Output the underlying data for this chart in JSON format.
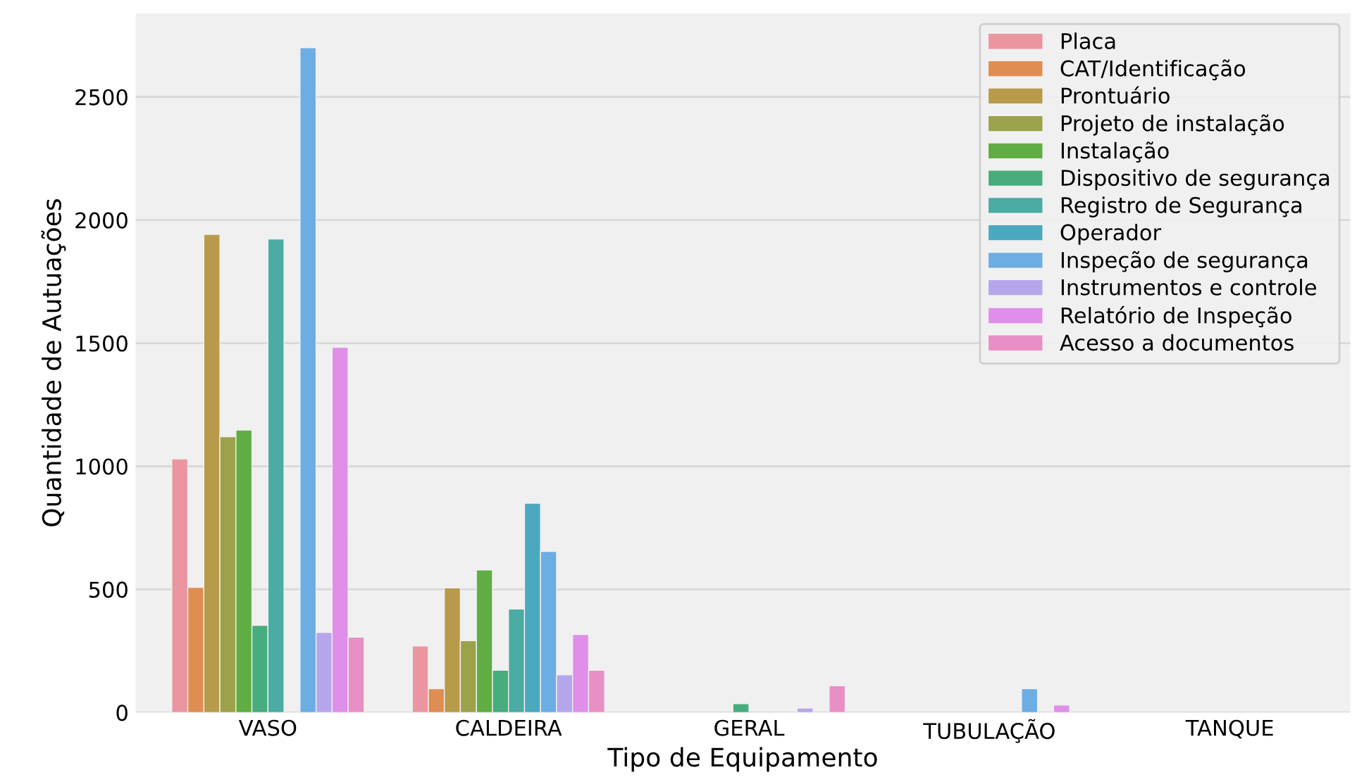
{
  "chart_data": {
    "type": "bar",
    "xlabel": "Tipo de Equipamento",
    "ylabel": "Quantidade de Autuações",
    "categories": [
      "VASO",
      "CALDEIRA",
      "GERAL",
      "TUBULAÇÃO",
      "TANQUE"
    ],
    "ylim": [
      0,
      2840
    ],
    "yticks": [
      0,
      500,
      1000,
      1500,
      2000,
      2500
    ],
    "grid": "y",
    "legend": "top right",
    "series": [
      {
        "name": "Placa",
        "color": "#ea95a0",
        "values": [
          1030,
          270,
          null,
          null,
          null
        ]
      },
      {
        "name": "CAT/Identificação",
        "color": "#e08d52",
        "values": [
          508,
          97,
          null,
          null,
          null
        ]
      },
      {
        "name": "Prontuário",
        "color": "#b89b4a",
        "values": [
          1942,
          506,
          null,
          null,
          null
        ]
      },
      {
        "name": "Projeto de instalação",
        "color": "#9ba249",
        "values": [
          1120,
          292,
          null,
          null,
          null
        ]
      },
      {
        "name": "Instalação",
        "color": "#5fad43",
        "values": [
          1147,
          579,
          null,
          null,
          null
        ]
      },
      {
        "name": "Dispositivo de segurança",
        "color": "#47ad7d",
        "values": [
          354,
          172,
          36,
          null,
          null
        ]
      },
      {
        "name": "Registro de Segurança",
        "color": "#4aaca3",
        "values": [
          1923,
          420,
          null,
          null,
          null
        ]
      },
      {
        "name": "Operador",
        "color": "#4ba9bf",
        "values": [
          null,
          850,
          null,
          null,
          null
        ]
      },
      {
        "name": "Inspeção de segurança",
        "color": "#6cade3",
        "values": [
          2700,
          654,
          null,
          97,
          null
        ]
      },
      {
        "name": "Instrumentos e controle",
        "color": "#b5a6ec",
        "values": [
          325,
          153,
          18,
          null,
          null
        ]
      },
      {
        "name": "Relatório de Inspeção",
        "color": "#df8ee9",
        "values": [
          1483,
          317,
          null,
          30,
          null
        ]
      },
      {
        "name": "Acesso a documentos",
        "color": "#e88fc5",
        "values": [
          306,
          172,
          109,
          null,
          null
        ]
      }
    ]
  }
}
